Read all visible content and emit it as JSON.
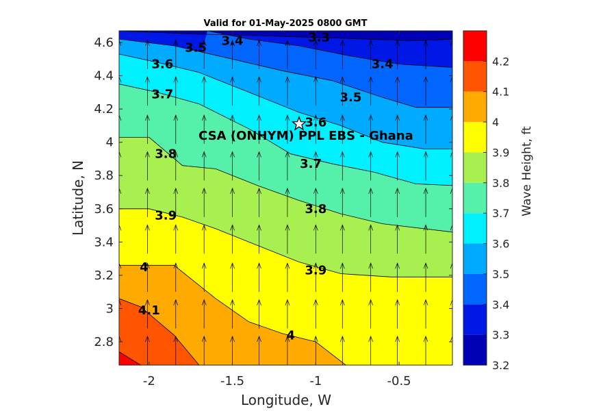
{
  "chart_data": {
    "type": "contour",
    "title": "Valid for 01-May-2025 0800 GMT",
    "xlabel": "Longitude, W",
    "ylabel": "Latitude, N",
    "xlim": [
      -2.18,
      -0.18
    ],
    "ylim": [
      2.66,
      4.67
    ],
    "xticks": [
      -2,
      -1.5,
      -1,
      -0.5
    ],
    "xtick_labels": [
      "-2",
      "-1.5",
      "-1",
      "-0.5"
    ],
    "yticks": [
      2.8,
      3,
      3.2,
      3.4,
      3.6,
      3.8,
      4,
      4.2,
      4.4,
      4.6
    ],
    "ytick_labels": [
      "2.8",
      "3",
      "3.2",
      "3.4",
      "3.6",
      "3.8",
      "4",
      "4.2",
      "4.4",
      "4.6"
    ],
    "colorbar": {
      "label": "Wave Height, ft",
      "range": [
        3.2,
        4.3
      ],
      "ticks": [
        3.2,
        3.3,
        3.4,
        3.5,
        3.6,
        3.7,
        3.8,
        3.9,
        4,
        4.1,
        4.2
      ],
      "tick_labels": [
        "3.2",
        "3.3",
        "3.4",
        "3.5",
        "3.6",
        "3.7",
        "3.8",
        "3.9",
        "4",
        "4.1",
        "4.2"
      ],
      "bands": [
        {
          "from": 3.2,
          "to": 3.3,
          "color": "#0000b4"
        },
        {
          "from": 3.3,
          "to": 3.4,
          "color": "#0018e6"
        },
        {
          "from": 3.4,
          "to": 3.5,
          "color": "#0066ff"
        },
        {
          "from": 3.5,
          "to": 3.6,
          "color": "#00aaff"
        },
        {
          "from": 3.6,
          "to": 3.7,
          "color": "#00f0ff"
        },
        {
          "from": 3.7,
          "to": 3.8,
          "color": "#55f0aa"
        },
        {
          "from": 3.8,
          "to": 3.9,
          "color": "#a8f050"
        },
        {
          "from": 3.9,
          "to": 4.0,
          "color": "#ffff00"
        },
        {
          "from": 4.0,
          "to": 4.1,
          "color": "#ffaa00"
        },
        {
          "from": 4.1,
          "to": 4.2,
          "color": "#ff5500"
        },
        {
          "from": 4.2,
          "to": 4.3,
          "color": "#ff0000"
        }
      ]
    },
    "contour_lines": [
      {
        "level": 3.3,
        "points": [
          [
            -2.18,
            4.67
          ],
          [
            -1.7,
            4.65
          ],
          [
            -1.3,
            4.64
          ],
          [
            -1.0,
            4.63
          ],
          [
            -0.7,
            4.62
          ],
          [
            -0.4,
            4.61
          ],
          [
            -0.18,
            4.62
          ]
        ]
      },
      {
        "level": 3.4,
        "points": [
          [
            -1.65,
            4.67
          ],
          [
            -1.4,
            4.62
          ],
          [
            -1.1,
            4.58
          ],
          [
            -0.8,
            4.52
          ],
          [
            -0.5,
            4.47
          ],
          [
            -0.18,
            4.45
          ]
        ]
      },
      {
        "level": 3.5,
        "points": [
          [
            -2.18,
            4.62
          ],
          [
            -1.85,
            4.58
          ],
          [
            -1.5,
            4.5
          ],
          [
            -1.2,
            4.43
          ],
          [
            -0.9,
            4.37
          ],
          [
            -0.6,
            4.27
          ],
          [
            -0.4,
            4.21
          ],
          [
            -0.18,
            4.21
          ]
        ]
      },
      {
        "level": 3.6,
        "points": [
          [
            -2.18,
            4.53
          ],
          [
            -1.95,
            4.48
          ],
          [
            -1.7,
            4.42
          ],
          [
            -1.4,
            4.3
          ],
          [
            -1.1,
            4.18
          ],
          [
            -0.85,
            4.1
          ],
          [
            -0.6,
            4.0
          ],
          [
            -0.35,
            3.96
          ],
          [
            -0.18,
            3.96
          ]
        ]
      },
      {
        "level": 3.7,
        "points": [
          [
            -2.18,
            4.35
          ],
          [
            -1.95,
            4.3
          ],
          [
            -1.7,
            4.23
          ],
          [
            -1.4,
            4.08
          ],
          [
            -1.15,
            3.93
          ],
          [
            -0.9,
            3.87
          ],
          [
            -0.65,
            3.82
          ],
          [
            -0.4,
            3.75
          ],
          [
            -0.18,
            3.74
          ]
        ]
      },
      {
        "level": 3.8,
        "points": [
          [
            -2.18,
            4.03
          ],
          [
            -2.0,
            4.03
          ],
          [
            -1.8,
            3.86
          ],
          [
            -1.6,
            3.84
          ],
          [
            -1.35,
            3.74
          ],
          [
            -1.1,
            3.65
          ],
          [
            -0.85,
            3.57
          ],
          [
            -0.6,
            3.51
          ],
          [
            -0.18,
            3.46
          ]
        ]
      },
      {
        "level": 3.9,
        "points": [
          [
            -2.18,
            3.6
          ],
          [
            -2.0,
            3.6
          ],
          [
            -1.8,
            3.55
          ],
          [
            -1.6,
            3.48
          ],
          [
            -1.35,
            3.38
          ],
          [
            -1.1,
            3.28
          ],
          [
            -0.85,
            3.21
          ],
          [
            -0.55,
            3.19
          ],
          [
            -0.18,
            3.19
          ]
        ]
      },
      {
        "level": 4.0,
        "points": [
          [
            -2.18,
            3.26
          ],
          [
            -2.0,
            3.26
          ],
          [
            -1.85,
            3.26
          ],
          [
            -1.6,
            3.06
          ],
          [
            -1.4,
            2.92
          ],
          [
            -1.2,
            2.85
          ],
          [
            -1.0,
            2.8
          ],
          [
            -0.82,
            2.66
          ]
        ]
      },
      {
        "level": 4.1,
        "points": [
          [
            -2.18,
            3.06
          ],
          [
            -2.05,
            3.01
          ],
          [
            -1.85,
            2.84
          ],
          [
            -1.7,
            2.66
          ]
        ]
      },
      {
        "level": 4.2,
        "points": [
          [
            -2.18,
            2.74
          ],
          [
            -2.05,
            2.66
          ]
        ]
      }
    ],
    "contour_labels": [
      {
        "text": "3.3",
        "x": -0.98,
        "y": 4.63
      },
      {
        "text": "3.4",
        "x": -1.5,
        "y": 4.61
      },
      {
        "text": "3.4",
        "x": -0.6,
        "y": 4.47
      },
      {
        "text": "3.5",
        "x": -1.72,
        "y": 4.57
      },
      {
        "text": "3.5",
        "x": -0.79,
        "y": 4.27
      },
      {
        "text": "3.6",
        "x": -1.92,
        "y": 4.47
      },
      {
        "text": "3.6",
        "x": -1.0,
        "y": 4.12
      },
      {
        "text": "3.7",
        "x": -1.92,
        "y": 4.29
      },
      {
        "text": "3.7",
        "x": -1.03,
        "y": 3.87
      },
      {
        "text": "3.8",
        "x": -1.9,
        "y": 3.93
      },
      {
        "text": "3.8",
        "x": -1.0,
        "y": 3.6
      },
      {
        "text": "3.9",
        "x": -1.9,
        "y": 3.56
      },
      {
        "text": "3.9",
        "x": -1.0,
        "y": 3.23
      },
      {
        "text": "4",
        "x": -2.03,
        "y": 3.25
      },
      {
        "text": "4",
        "x": -1.15,
        "y": 2.84
      },
      {
        "text": "4.1",
        "x": -2.0,
        "y": 2.99
      }
    ],
    "site": {
      "label": "CSA (ONHYM) PPL EBS  - Ghana",
      "marker": "star-icon",
      "x": -1.1,
      "y": 4.11
    },
    "vector_field": {
      "x": [
        -2.18,
        -2.01,
        -1.84,
        -1.67,
        -1.5,
        -1.34,
        -1.17,
        -1.0,
        -0.84,
        -0.67,
        -0.51,
        -0.34,
        -0.18
      ],
      "y": [
        2.66,
        2.88,
        3.1,
        3.33,
        3.55,
        3.77,
        3.99,
        4.22,
        4.44,
        4.66
      ],
      "direction": "north"
    }
  }
}
